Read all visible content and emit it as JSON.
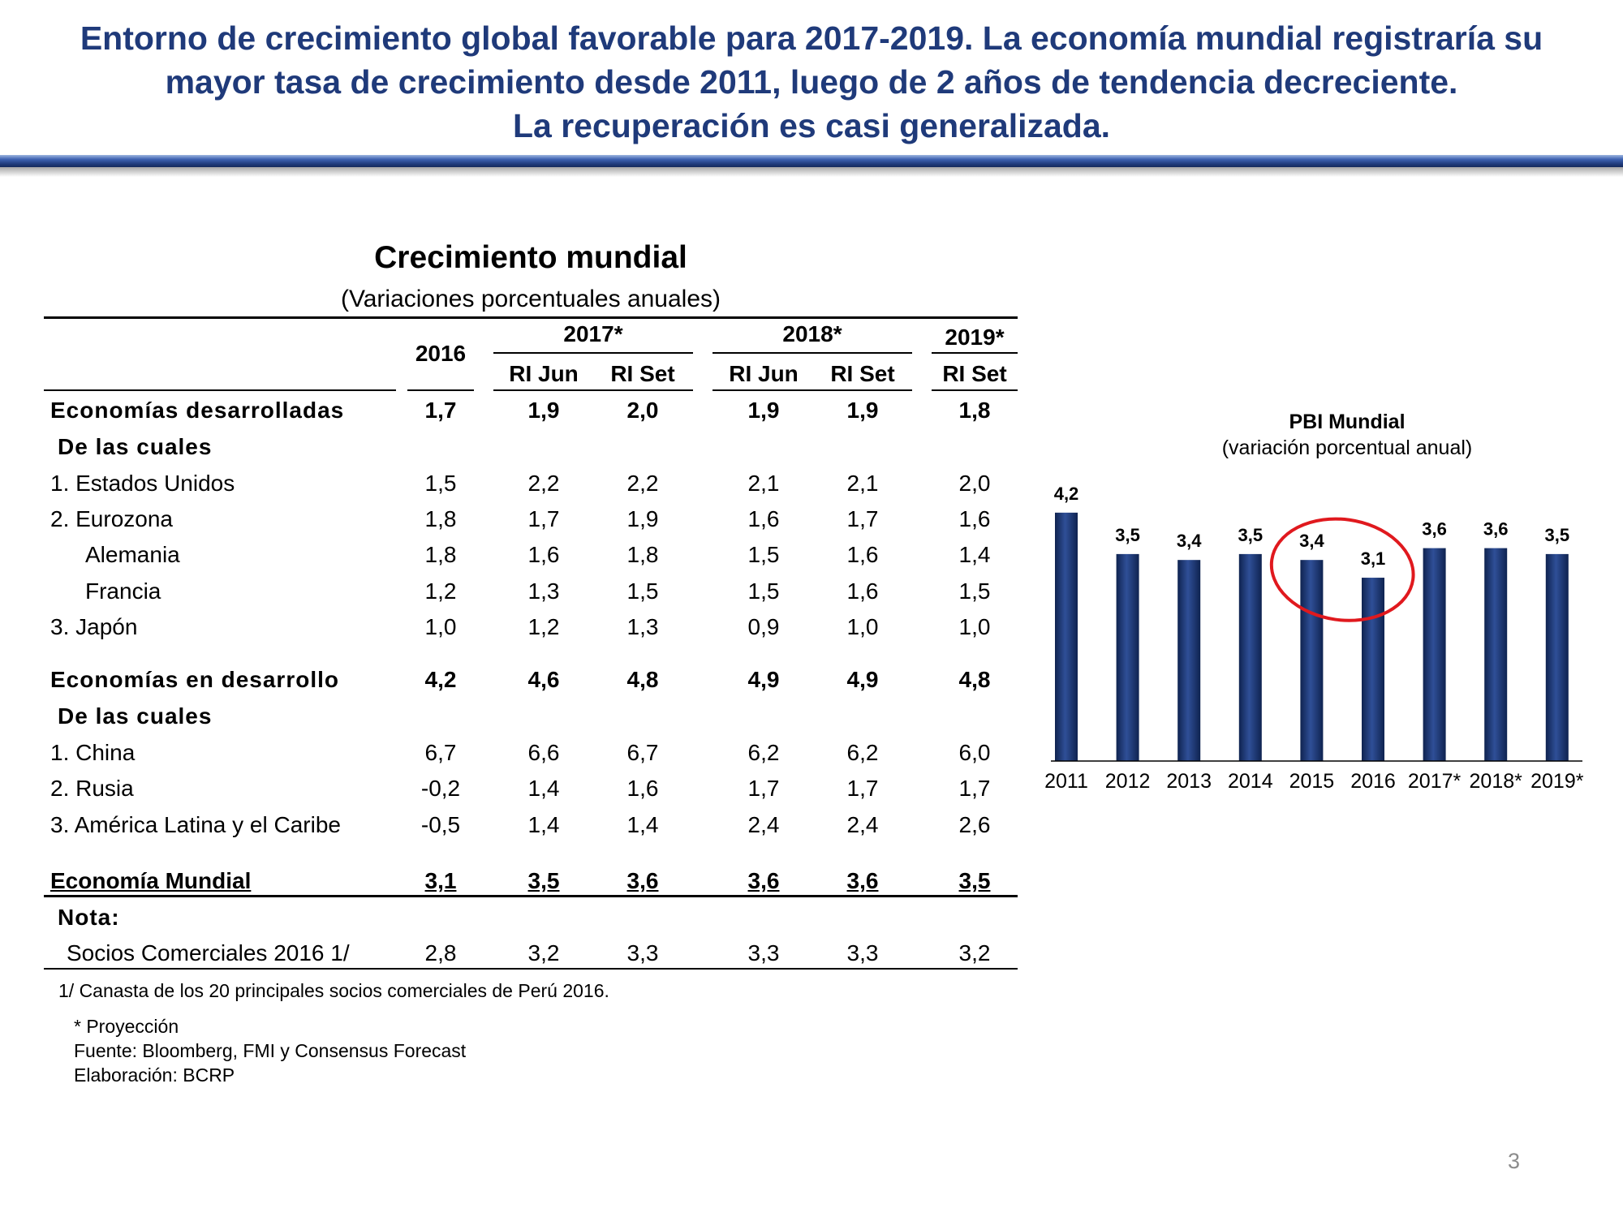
{
  "slide_title": [
    "Entorno de crecimiento global favorable para 2017-2019. La economía mundial registraría su",
    "mayor tasa de crecimiento desde 2011, luego de 2 años de tendencia decreciente.",
    "La recuperación es casi generalizada."
  ],
  "table": {
    "title": "Crecimiento mundial",
    "subtitle": "(Variaciones porcentuales anuales)",
    "header": {
      "year_2016": "2016",
      "group_2017": "2017*",
      "group_2018": "2018*",
      "group_2019": "2019*",
      "sub": [
        "RI Jun",
        "RI Set",
        "RI Jun",
        "RI Set",
        "RI Set"
      ]
    },
    "rows": [
      {
        "label": "Economías desarrolladas",
        "values": [
          "1,7",
          "1,9",
          "2,0",
          "1,9",
          "1,9",
          "1,8"
        ],
        "style": "bold"
      },
      {
        "label": "De las cuales",
        "values": [],
        "style": "subhead"
      },
      {
        "label": "1. Estados Unidos",
        "values": [
          "1,5",
          "2,2",
          "2,2",
          "2,1",
          "2,1",
          "2,0"
        ],
        "style": "normal"
      },
      {
        "label": "2. Eurozona",
        "values": [
          "1,8",
          "1,7",
          "1,9",
          "1,6",
          "1,7",
          "1,6"
        ],
        "style": "normal"
      },
      {
        "label": "Alemania",
        "values": [
          "1,8",
          "1,6",
          "1,8",
          "1,5",
          "1,6",
          "1,4"
        ],
        "style": "indent"
      },
      {
        "label": "Francia",
        "values": [
          "1,2",
          "1,3",
          "1,5",
          "1,5",
          "1,6",
          "1,5"
        ],
        "style": "indent"
      },
      {
        "label": "3. Japón",
        "values": [
          "1,0",
          "1,2",
          "1,3",
          "0,9",
          "1,0",
          "1,0"
        ],
        "style": "normal"
      },
      {
        "label": "Economías en desarrollo",
        "values": [
          "4,2",
          "4,6",
          "4,8",
          "4,9",
          "4,9",
          "4,8"
        ],
        "style": "bold"
      },
      {
        "label": "De las cuales",
        "values": [],
        "style": "subhead"
      },
      {
        "label": "1. China",
        "values": [
          "6,7",
          "6,6",
          "6,7",
          "6,2",
          "6,2",
          "6,0"
        ],
        "style": "normal"
      },
      {
        "label": "2. Rusia",
        "values": [
          "-0,2",
          "1,4",
          "1,6",
          "1,7",
          "1,7",
          "1,7"
        ],
        "style": "normal"
      },
      {
        "label": "3. América Latina y el Caribe",
        "values": [
          "-0,5",
          "1,4",
          "1,4",
          "2,4",
          "2,4",
          "2,6"
        ],
        "style": "normal"
      },
      {
        "label": "Economía Mundial",
        "values": [
          "3,1",
          "3,5",
          "3,6",
          "3,6",
          "3,6",
          "3,5"
        ],
        "style": "total"
      },
      {
        "label": "Nota:",
        "values": [],
        "style": "subhead"
      },
      {
        "label": "Socios Comerciales 2016 1/",
        "values": [
          "2,8",
          "3,2",
          "3,3",
          "3,3",
          "3,3",
          "3,2"
        ],
        "style": "note"
      }
    ]
  },
  "footnotes": {
    "note1": "1/ Canasta de los 20 principales socios comerciales de Perú 2016.",
    "projection": "* Proyección",
    "source": "Fuente: Bloomberg, FMI y Consensus Forecast",
    "elaboration": "Elaboración: BCRP"
  },
  "chart_data": {
    "type": "bar",
    "title": "PBI Mundial",
    "subtitle": "(variación porcentual anual)",
    "categories": [
      "2011",
      "2012",
      "2013",
      "2014",
      "2015",
      "2016",
      "2017*",
      "2018*",
      "2019*"
    ],
    "values": [
      4.2,
      3.5,
      3.4,
      3.5,
      3.4,
      3.1,
      3.6,
      3.6,
      3.5
    ],
    "data_labels": [
      "4,2",
      "3,5",
      "3,4",
      "3,5",
      "3,4",
      "3,1",
      "3,6",
      "3,6",
      "3,5"
    ],
    "ylim": [
      0,
      4.5
    ],
    "grid": false,
    "bar_color": "#1f3a7a",
    "highlight_color": "#e0191e",
    "highlight_categories": [
      "2015",
      "2016"
    ]
  },
  "page_number": "3"
}
